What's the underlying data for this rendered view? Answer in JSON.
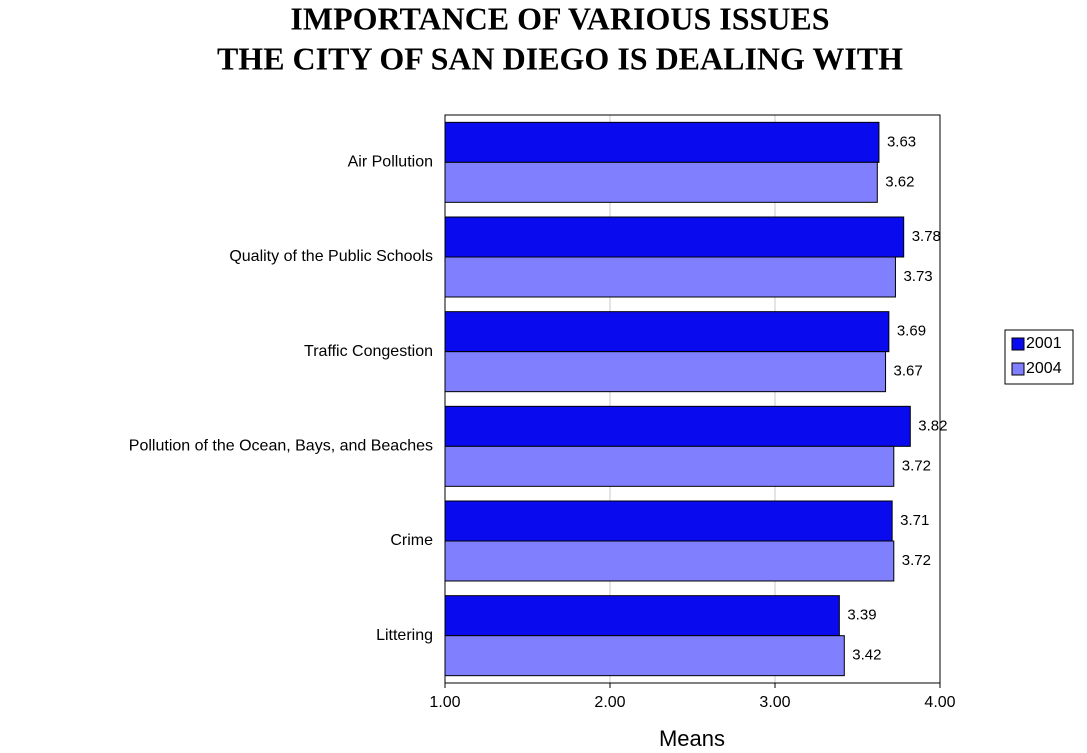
{
  "chart_data": {
    "type": "hbar",
    "title": [
      "IMPORTANCE OF VARIOUS ISSUES",
      "THE CITY OF SAN DIEGO IS DEALING WITH"
    ],
    "x_label": "Means",
    "categories": [
      "Air Pollution",
      "Quality of the Public Schools",
      "Traffic Congestion",
      "Pollution of the Ocean, Bays, and Beaches",
      "Crime",
      "Littering"
    ],
    "series": [
      {
        "name": "2001",
        "color": "#0a0aee",
        "values": [
          3.63,
          3.78,
          3.69,
          3.82,
          3.71,
          3.39
        ]
      },
      {
        "name": "2004",
        "color": "#8080ff",
        "values": [
          3.62,
          3.73,
          3.67,
          3.72,
          3.72,
          3.42
        ]
      }
    ],
    "xlim": [
      1,
      4
    ],
    "xticks": [
      {
        "value": 1,
        "label": "1.00"
      },
      {
        "value": 2,
        "label": "2.00"
      },
      {
        "value": 3,
        "label": "3.00"
      },
      {
        "value": 4,
        "label": "4.00"
      }
    ],
    "grid": true,
    "legend": "right"
  }
}
